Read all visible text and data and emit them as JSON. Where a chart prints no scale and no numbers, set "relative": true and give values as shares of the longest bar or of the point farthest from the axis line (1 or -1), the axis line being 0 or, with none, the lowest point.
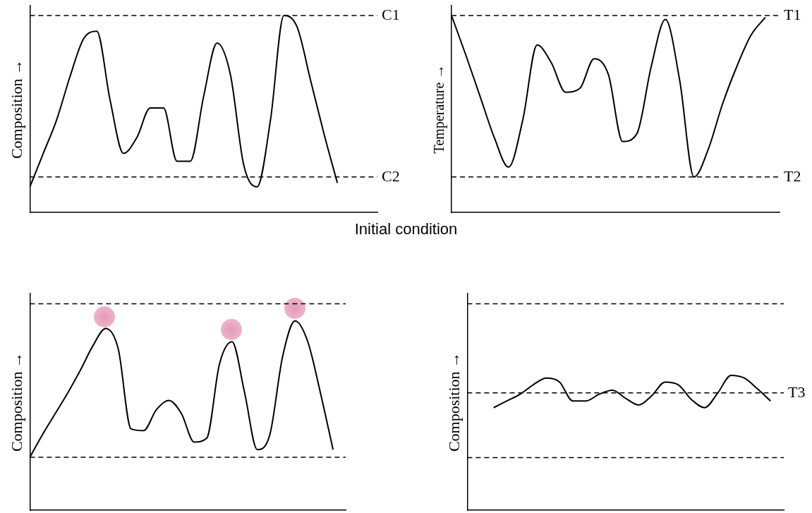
{
  "chart_data": [
    {
      "type": "line",
      "relative": true,
      "ylabel": "Composition →",
      "categories": [
        null,
        null,
        null,
        null,
        null,
        null,
        null,
        null,
        null,
        null,
        null,
        null,
        null,
        null,
        null,
        null,
        null,
        null,
        null,
        null,
        null,
        null,
        null,
        null,
        null,
        null,
        null
      ],
      "series": [
        {
          "color": "#000000",
          "values": [
            0.13,
            0.3,
            0.47,
            0.69,
            0.88,
            0.92,
            0.57,
            0.3,
            0.38,
            0.53,
            0.53,
            0.26,
            0.26,
            0.59,
            0.86,
            0.7,
            0.24,
            0.13,
            0.47,
            1,
            0.94,
            0.67,
            0.4,
            0.15,
            null,
            null,
            null
          ]
        }
      ],
      "ref_lines": [
        {
          "axis": "y",
          "value": 1,
          "label": "C1",
          "line_style": "dashed",
          "color": "#000000"
        },
        {
          "axis": "y",
          "value": 0.18,
          "label": "C2",
          "line_style": "dashed",
          "color": "#000000"
        }
      ],
      "annotations": [
        "Initial condition"
      ],
      "grid": false,
      "legend": false,
      "marker": "none",
      "line_style": "solid",
      "tick_labels": false
    },
    {
      "type": "line",
      "relative": true,
      "ylabel": "Temperature →",
      "categories": [
        null,
        null,
        null,
        null,
        null,
        null,
        null,
        null,
        null,
        null,
        null,
        null,
        null,
        null,
        null,
        null,
        null,
        null,
        null,
        null,
        null,
        null,
        null,
        null
      ],
      "series": [
        {
          "color": "#000000",
          "values": [
            1,
            0.8,
            0.59,
            0.38,
            0.23,
            0.47,
            0.85,
            0.76,
            0.61,
            0.63,
            0.78,
            0.7,
            0.36,
            0.4,
            0.74,
            0.98,
            0.67,
            0.18,
            0.32,
            0.55,
            0.74,
            0.9,
            0.99,
            null
          ]
        }
      ],
      "ref_lines": [
        {
          "axis": "y",
          "value": 1,
          "label": "T1",
          "line_style": "dashed",
          "color": "#000000"
        },
        {
          "axis": "y",
          "value": 0.18,
          "label": "T2",
          "line_style": "dashed",
          "color": "#000000"
        }
      ],
      "grid": false,
      "legend": false,
      "marker": "none",
      "line_style": "solid",
      "tick_labels": false
    },
    {
      "type": "line",
      "relative": true,
      "ylabel": "Composition →",
      "categories": [
        null,
        null,
        null,
        null,
        null,
        null,
        null,
        null,
        null,
        null,
        null,
        null,
        null,
        null,
        null,
        null,
        null,
        null,
        null,
        null,
        null,
        null,
        null,
        null,
        null,
        null
      ],
      "series": [
        {
          "color": "#000000",
          "values": [
            0.28,
            0.4,
            0.51,
            0.62,
            0.74,
            0.87,
            0.96,
            0.85,
            0.43,
            0.42,
            0.53,
            0.58,
            0.51,
            0.36,
            0.38,
            0.77,
            0.89,
            0.62,
            0.32,
            0.4,
            0.81,
            1,
            0.89,
            0.62,
            0.32,
            null
          ]
        }
      ],
      "ref_lines": [
        {
          "axis": "y",
          "value": 1.09,
          "line_style": "dashed",
          "color": "#000000"
        },
        {
          "axis": "y",
          "value": 0.28,
          "line_style": "dashed",
          "color": "#000000"
        }
      ],
      "grid": false,
      "legend": false,
      "marker": "none",
      "line_style": "solid",
      "tick_labels": false
    },
    {
      "type": "line",
      "relative": true,
      "ylabel": "Composition →",
      "categories": [
        null,
        null,
        null,
        null,
        null,
        null,
        null,
        null,
        null,
        null,
        null,
        null,
        null,
        null,
        null,
        null,
        null,
        null,
        null,
        null,
        null,
        null,
        null,
        null,
        null
      ],
      "series": [
        {
          "color": "#000000",
          "values": [
            null,
            null,
            0.76,
            0.81,
            0.86,
            0.93,
            0.98,
            0.95,
            0.81,
            0.81,
            0.86,
            0.89,
            0.83,
            0.78,
            0.85,
            0.95,
            0.93,
            0.82,
            0.76,
            0.87,
            1,
            0.98,
            0.9,
            0.81,
            null
          ]
        }
      ],
      "ref_lines": [
        {
          "axis": "y",
          "value": 1.53,
          "line_style": "dashed",
          "color": "#000000"
        },
        {
          "axis": "y",
          "value": 0.87,
          "label": "T3",
          "line_style": "dashed",
          "color": "#000000"
        },
        {
          "axis": "y",
          "value": 0.39,
          "line_style": "dashed",
          "color": "#000000"
        }
      ],
      "grid": false,
      "legend": false,
      "marker": "none",
      "line_style": "solid",
      "tick_labels": false
    }
  ]
}
